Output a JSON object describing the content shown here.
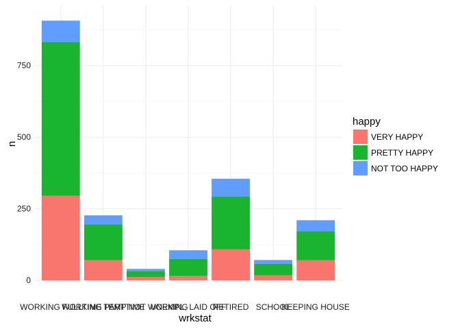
{
  "chart_data": {
    "type": "bar",
    "stacked": true,
    "xlabel": "wrkstat",
    "ylabel": "n",
    "ylim": [
      0,
      960
    ],
    "yticks": [
      0,
      250,
      500,
      750
    ],
    "grid": true,
    "categories": [
      "WORKING FULLTIME",
      "WORKING PARTTIME",
      "TEMP NOT WORKING",
      "UNEMPL, LAID OFF",
      "RETIRED",
      "SCHOOL",
      "KEEPING HOUSE"
    ],
    "legend": {
      "title": "happy",
      "placement": "right"
    },
    "series": [
      {
        "name": "VERY HAPPY",
        "color": "#F8766D",
        "values": [
          295,
          70,
          12,
          15,
          108,
          18,
          70
        ]
      },
      {
        "name": "PRETTY HAPPY",
        "color": "#19B52F",
        "values": [
          537,
          125,
          20,
          60,
          185,
          40,
          102
        ]
      },
      {
        "name": "NOT TOO HAPPY",
        "color": "#619CFF",
        "values": [
          75,
          32,
          8,
          30,
          62,
          13,
          38
        ]
      }
    ]
  }
}
